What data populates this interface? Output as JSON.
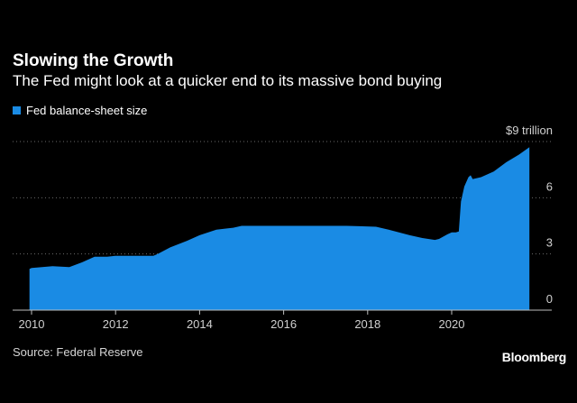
{
  "chart_data": {
    "type": "area",
    "title": "Slowing the Growth",
    "subtitle": "The Fed might look at a quicker end to its massive bond buying",
    "legend": [
      {
        "label": "Fed balance-sheet size",
        "color": "#1a8be4"
      }
    ],
    "legend_position": "top-left",
    "xlabel": "",
    "ylabel": "",
    "xlim": [
      2009.5,
      2022.5
    ],
    "ylim": [
      0,
      9
    ],
    "x_ticks": [
      2010,
      2012,
      2014,
      2016,
      2018,
      2020
    ],
    "x_tick_labels": [
      "2010",
      "2012",
      "2014",
      "2016",
      "2018",
      "2020"
    ],
    "y_ticks": [
      0,
      3,
      6,
      9
    ],
    "y_tick_labels": [
      "0",
      "3",
      "6",
      "$9 trillion"
    ],
    "grid": "horizontal dotted",
    "series": [
      {
        "name": "Fed balance-sheet size",
        "color": "#1a8be4",
        "x": [
          2009.95,
          2010.0,
          2010.5,
          2010.9,
          2011.2,
          2011.5,
          2011.8,
          2012.0,
          2012.5,
          2012.9,
          2013.0,
          2013.3,
          2013.7,
          2014.0,
          2014.4,
          2014.8,
          2015.0,
          2015.5,
          2016.0,
          2016.5,
          2017.0,
          2017.5,
          2017.8,
          2018.2,
          2018.5,
          2019.0,
          2019.3,
          2019.6,
          2019.7,
          2019.9,
          2020.0,
          2020.1,
          2020.17,
          2020.22,
          2020.3,
          2020.4,
          2020.45,
          2020.5,
          2020.7,
          2021.0,
          2021.3,
          2021.6,
          2021.85
        ],
        "values": [
          2.2,
          2.25,
          2.35,
          2.3,
          2.55,
          2.85,
          2.85,
          2.9,
          2.9,
          2.9,
          3.0,
          3.35,
          3.7,
          4.0,
          4.3,
          4.4,
          4.5,
          4.5,
          4.5,
          4.5,
          4.5,
          4.5,
          4.48,
          4.45,
          4.3,
          4.0,
          3.85,
          3.75,
          3.8,
          4.05,
          4.15,
          4.15,
          4.2,
          5.8,
          6.6,
          7.1,
          7.2,
          7.0,
          7.1,
          7.4,
          7.9,
          8.3,
          8.7
        ]
      }
    ]
  },
  "source": "Source: Federal Reserve",
  "brand": "Bloomberg"
}
